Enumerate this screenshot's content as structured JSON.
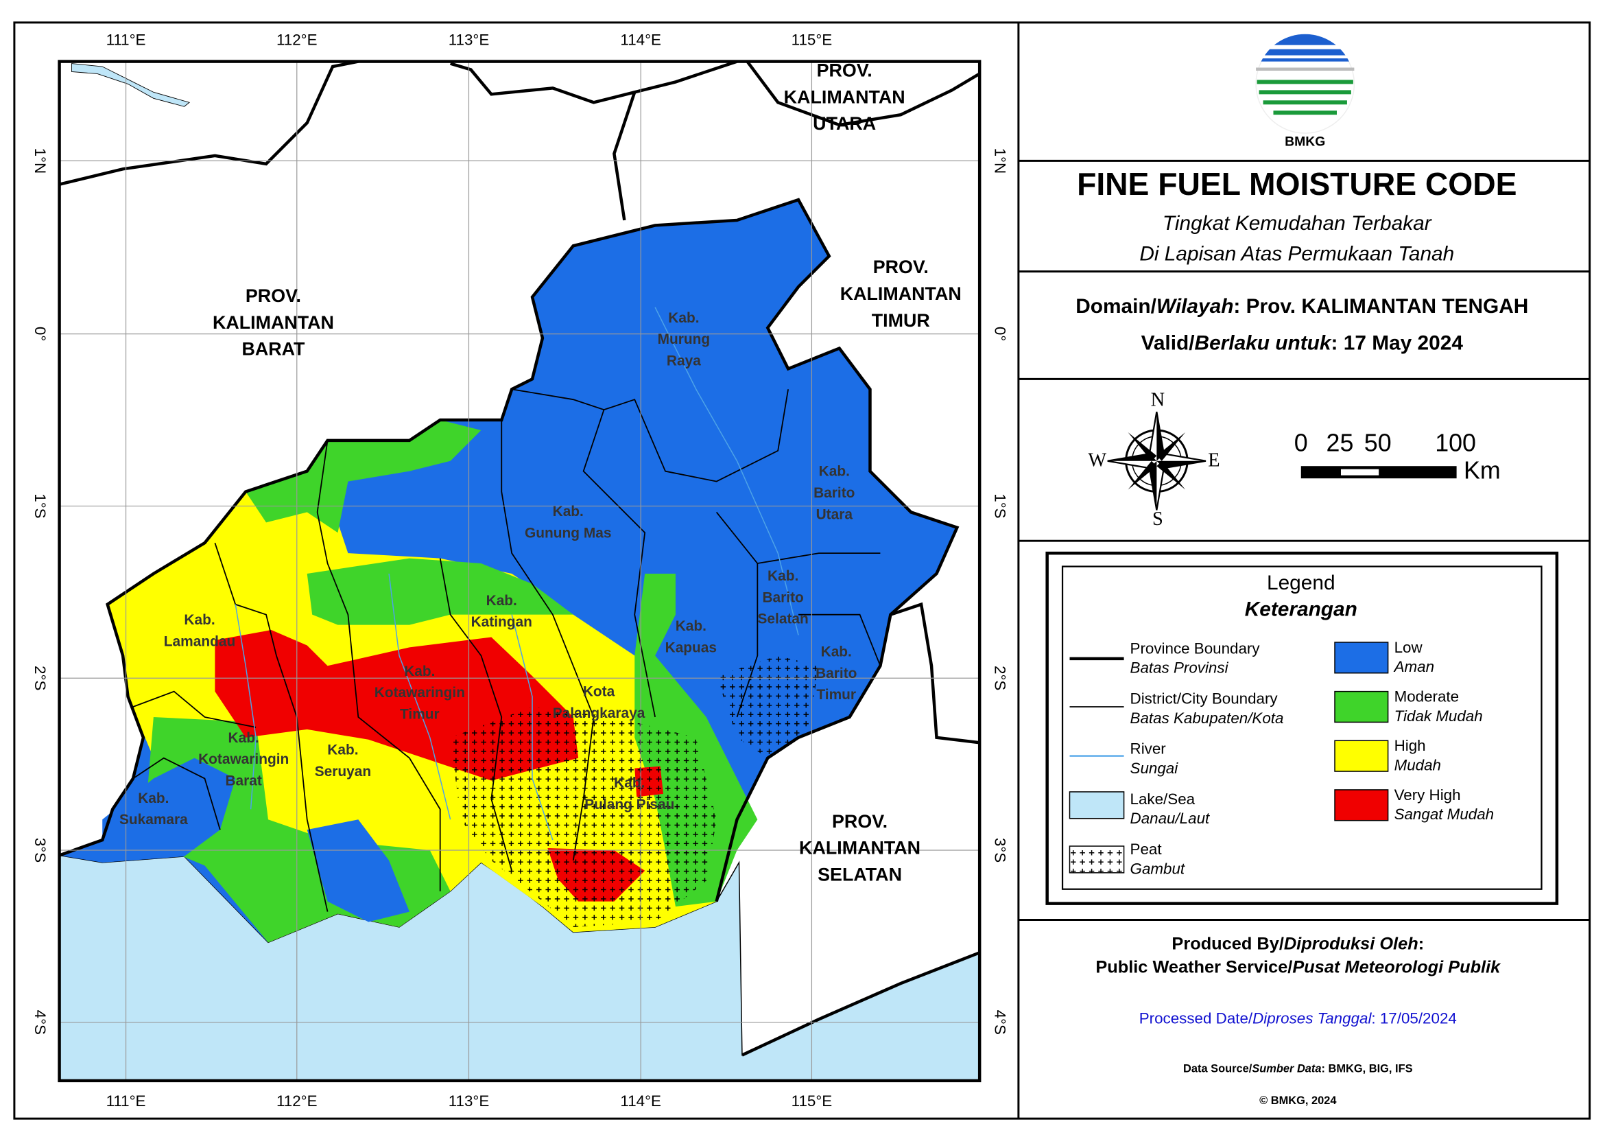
{
  "map": {
    "lon_labels": [
      "111°E",
      "112°E",
      "113°E",
      "114°E",
      "115°E"
    ],
    "lat_labels": [
      "1°N",
      "0°",
      "1°S",
      "2°S",
      "3°S",
      "4°S"
    ],
    "provinces": [
      {
        "lines": [
          "PROV.",
          "KALIMANTAN",
          "BARAT"
        ]
      },
      {
        "lines": [
          "PROV.",
          "KALIMANTAN",
          "UTARA"
        ]
      },
      {
        "lines": [
          "PROV.",
          "KALIMANTAN",
          "TIMUR"
        ]
      },
      {
        "lines": [
          "PROV.",
          "KALIMANTAN",
          "SELATAN"
        ]
      }
    ],
    "districts": [
      {
        "lines": [
          "Kab.",
          "Murung",
          "Raya"
        ]
      },
      {
        "lines": [
          "Kab.",
          "Barito",
          "Utara"
        ]
      },
      {
        "lines": [
          "Kab.",
          "Gunung Mas"
        ]
      },
      {
        "lines": [
          "Kab.",
          "Katingan"
        ]
      },
      {
        "lines": [
          "Kab.",
          "Barito",
          "Selatan"
        ]
      },
      {
        "lines": [
          "Kab.",
          "Kapuas"
        ]
      },
      {
        "lines": [
          "Kab.",
          "Barito",
          "Timur"
        ]
      },
      {
        "lines": [
          "Kab.",
          "Lamandau"
        ]
      },
      {
        "lines": [
          "Kab.",
          "Kotawaringin",
          "Timur"
        ]
      },
      {
        "lines": [
          "Kota",
          "Palangkaraya"
        ]
      },
      {
        "lines": [
          "Kab.",
          "Kotawaringin",
          "Barat"
        ]
      },
      {
        "lines": [
          "Kab.",
          "Seruyan"
        ]
      },
      {
        "lines": [
          "Kab.",
          "Pulang Pisau"
        ]
      },
      {
        "lines": [
          "Kab.",
          "Sukamara"
        ]
      }
    ]
  },
  "header": {
    "logo_text": "BMKG",
    "title": "FINE FUEL MOISTURE CODE",
    "subtitle": [
      "Tingkat Kemudahan Terbakar",
      "Di Lapisan Atas Permukaan Tanah"
    ]
  },
  "info": {
    "domain": [
      "Domain/",
      "Wilayah",
      ": Prov. KALIMANTAN TENGAH"
    ],
    "valid": [
      "Valid/",
      "Berlaku untuk",
      ": 17 May 2024"
    ]
  },
  "compass": {
    "n": "N",
    "s": "S",
    "e": "E",
    "w": "W"
  },
  "scale": {
    "labels": [
      "0",
      "25",
      "50",
      "100"
    ],
    "unit": "Km"
  },
  "legend": {
    "title": "Legend",
    "subtitle": "Keterangan",
    "features": [
      {
        "label": "Province Boundary",
        "label_id": "Batas Provinsi"
      },
      {
        "label": "District/City Boundary",
        "label_id": "Batas Kabupaten/Kota"
      },
      {
        "label": "River",
        "label_id": "Sungai"
      },
      {
        "label": "Lake/Sea",
        "label_id": "Danau/Laut"
      },
      {
        "label": "Peat",
        "label_id": "Gambut"
      }
    ],
    "classes": [
      {
        "label": "Low",
        "label_id": "Aman",
        "color": "#1c6ee6"
      },
      {
        "label": "Moderate",
        "label_id": "Tidak Mudah",
        "color": "#3fd42a"
      },
      {
        "label": "High",
        "label_id": "Mudah",
        "color": "#ffff00"
      },
      {
        "label": "Very High",
        "label_id": "Sangat Mudah",
        "color": "#f00000"
      }
    ]
  },
  "credits": {
    "produced": [
      "Produced By/",
      "Diproduksi Oleh",
      ":"
    ],
    "service": [
      "Public Weather Service/",
      "Pusat Meteorologi Publik"
    ],
    "processed": [
      "Processed Date/",
      "Diproses Tanggal",
      ": 17/05/2024"
    ],
    "source": [
      "Data Source/",
      "Sumber Data",
      ": BMKG, BIG, IFS"
    ],
    "copyright": "© BMKG, 2024"
  }
}
